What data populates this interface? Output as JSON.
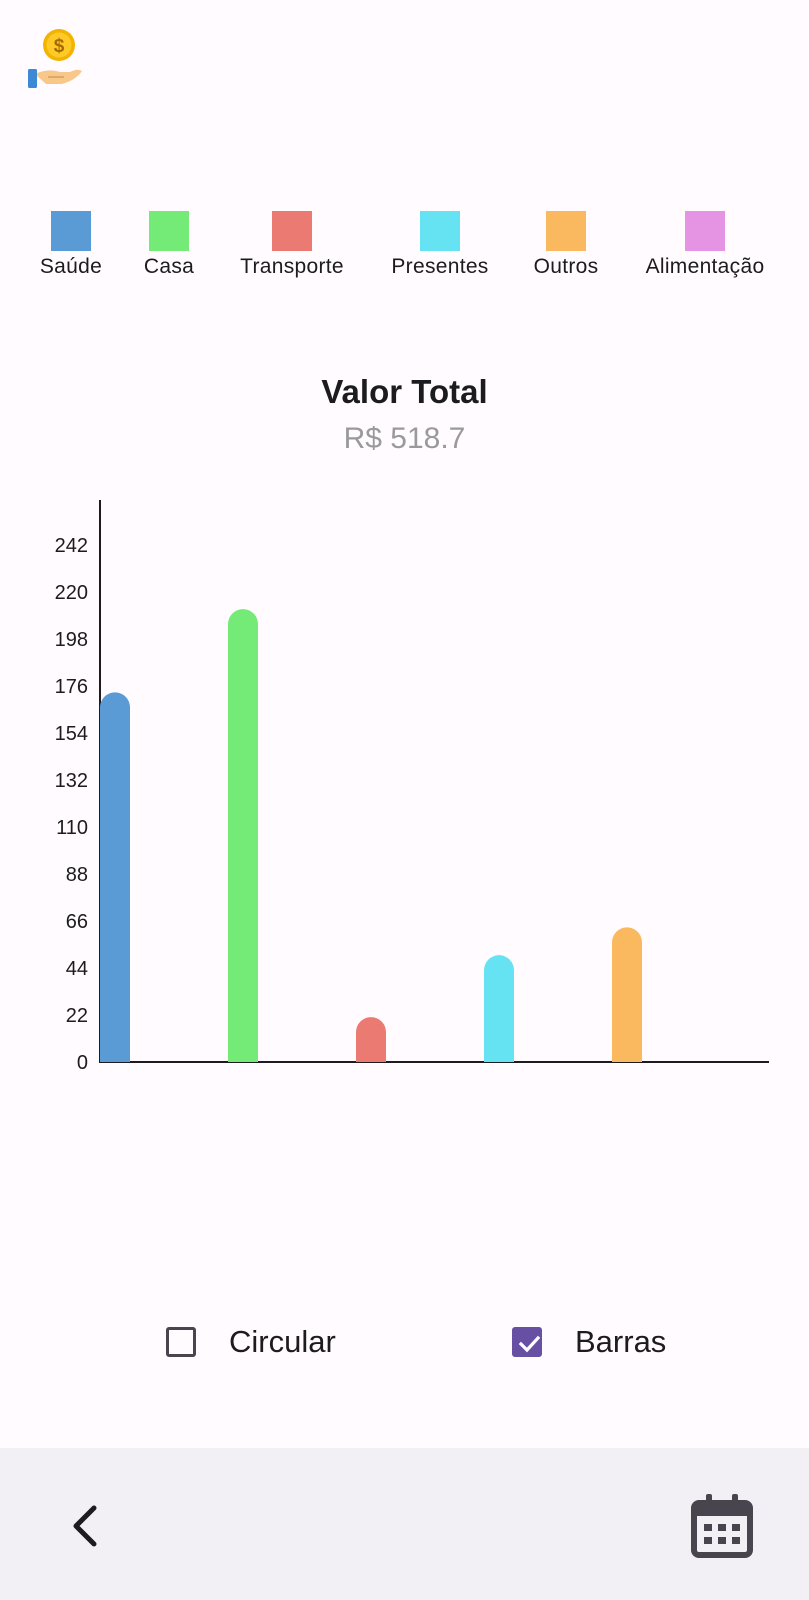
{
  "app": {
    "logo_icon": "coin-hand-icon"
  },
  "legend": {
    "items": [
      {
        "label": "Saúde",
        "color": "#5b9bd5"
      },
      {
        "label": "Casa",
        "color": "#73eb76"
      },
      {
        "label": "Transporte",
        "color": "#eb7a72"
      },
      {
        "label": "Presentes",
        "color": "#66e3f3"
      },
      {
        "label": "Outros",
        "color": "#fbb95f"
      },
      {
        "label": "Alimentação",
        "color": "#e494e2"
      }
    ]
  },
  "summary": {
    "title": "Valor Total",
    "value": "R$ 518.7"
  },
  "chart_data": {
    "type": "bar",
    "categories": [
      "Saúde",
      "Casa",
      "Transporte",
      "Presentes",
      "Outros",
      "Alimentação"
    ],
    "values": [
      173,
      212,
      21,
      50,
      63,
      0
    ],
    "colors": [
      "#5b9bd5",
      "#73eb76",
      "#eb7a72",
      "#66e3f3",
      "#fbb95f",
      "#e494e2"
    ],
    "y_ticks": [
      0,
      22,
      44,
      66,
      88,
      110,
      132,
      154,
      176,
      198,
      220,
      242
    ],
    "ylim": [
      0,
      260
    ],
    "grid": false,
    "title": "",
    "xlabel": "",
    "ylabel": ""
  },
  "toggles": {
    "circular": {
      "label": "Circular",
      "checked": false
    },
    "barras": {
      "label": "Barras",
      "checked": true
    }
  },
  "bottom_nav": {
    "back_icon": "chevron-left-icon",
    "calendar_icon": "calendar-icon"
  },
  "colors": {
    "accent": "#6750a4",
    "background": "#fffbfe",
    "bottom_bar": "#f3f0f5"
  }
}
